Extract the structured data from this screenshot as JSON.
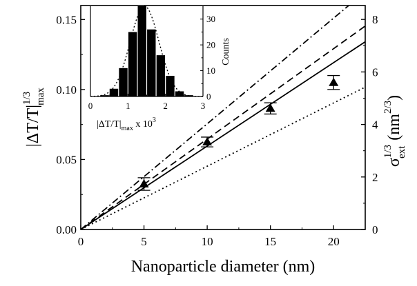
{
  "chart_data": [
    {
      "type": "scatter",
      "xlabel": "Nanoparticle diameter (nm)",
      "ylabel_left": {
        "base": "|ΔT/T|",
        "sup": "1/3",
        "sub": "max"
      },
      "ylabel_right": {
        "base": "σ",
        "sup": "1/3",
        "sub": "ext",
        "unit_base": "(nm",
        "unit_sup": "2/3",
        "unit_close": ")"
      },
      "xlim": [
        0,
        22.5
      ],
      "ylim_left": [
        0,
        0.16
      ],
      "ylim_right": [
        0,
        8.53
      ],
      "xticks": [
        "0",
        "5",
        "10",
        "15",
        "20"
      ],
      "yticks_left": [
        "0.00",
        "0.05",
        "0.10",
        "0.15"
      ],
      "yticks_right": [
        "0",
        "2",
        "4",
        "6",
        "8"
      ],
      "grid": false,
      "series": [
        {
          "kind": "points",
          "marker": "triangle",
          "x": [
            5,
            10,
            15,
            20
          ],
          "y": [
            0.0325,
            0.0625,
            0.0865,
            0.105
          ],
          "err": [
            0.0045,
            0.0035,
            0.004,
            0.005
          ]
        },
        {
          "kind": "line",
          "style": "solid",
          "slope": 0.00596
        },
        {
          "kind": "line",
          "style": "dashed",
          "slope": 0.00646
        },
        {
          "kind": "line",
          "style": "dashdot",
          "slope": 0.00755
        },
        {
          "kind": "line",
          "style": "dotted",
          "slope": 0.00452
        }
      ]
    },
    {
      "type": "bar",
      "inset": true,
      "xlabel": {
        "base": "|ΔT/T|",
        "sub": "max",
        "mid": " x 10",
        "sup": "3"
      },
      "ylabel": "Counts",
      "xlim": [
        0,
        3
      ],
      "ylim": [
        0,
        35
      ],
      "xticks": [
        "0",
        "1",
        "2",
        "3"
      ],
      "yticks": [
        "0",
        "10",
        "20",
        "30"
      ],
      "bin_width": 0.25,
      "bin_centers": [
        0.375,
        0.625,
        0.875,
        1.125,
        1.375,
        1.625,
        1.875,
        2.125,
        2.375,
        2.625
      ],
      "values": [
        0.5,
        3,
        11,
        25,
        35,
        26,
        16,
        8,
        2,
        0.5
      ],
      "fit": "gaussian"
    }
  ]
}
